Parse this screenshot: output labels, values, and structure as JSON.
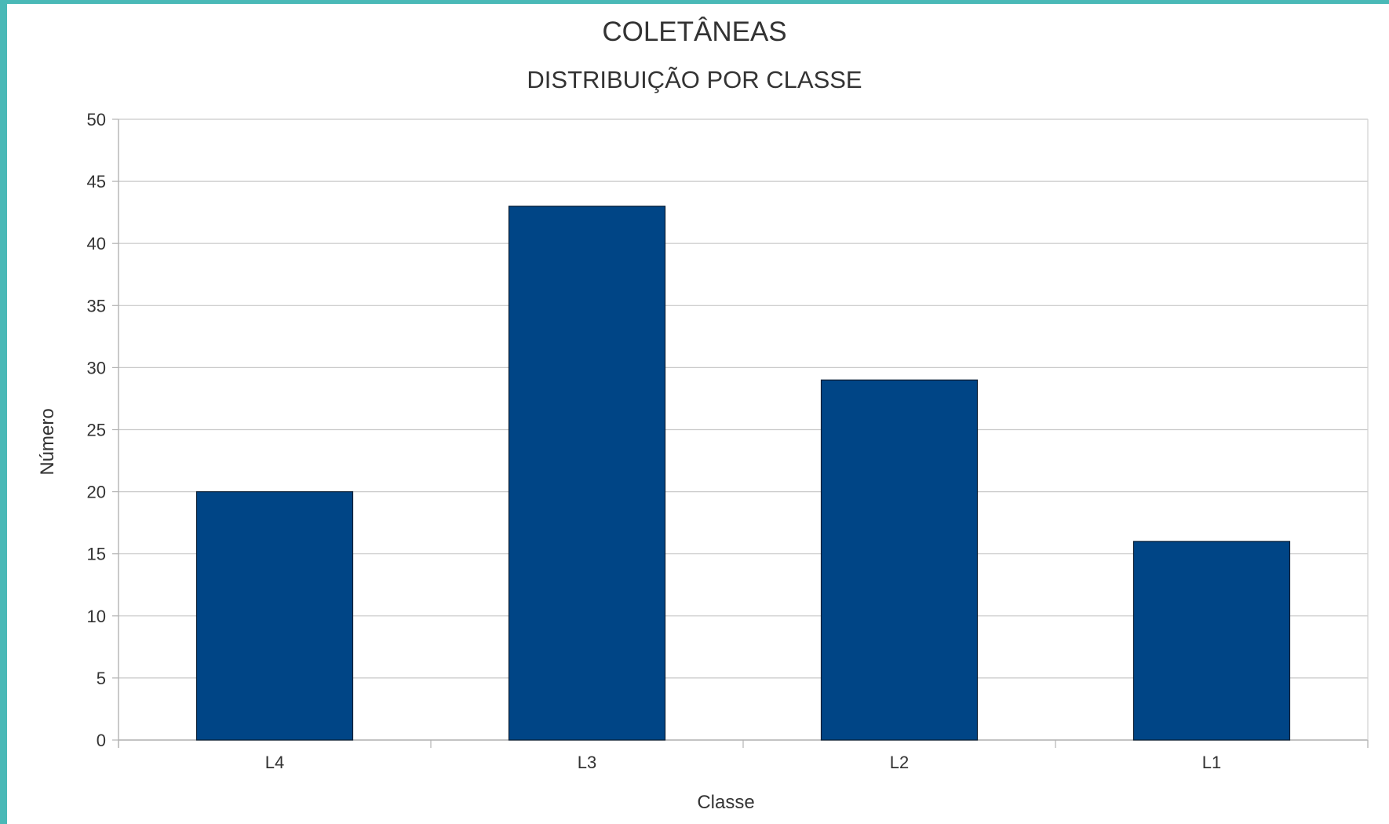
{
  "chart_data": {
    "type": "bar",
    "title": "COLETÂNEAS",
    "subtitle": "DISTRIBUIÇÃO POR CLASSE",
    "xlabel": "Classe",
    "ylabel": "Número",
    "categories": [
      "L4",
      "L3",
      "L2",
      "L1"
    ],
    "values": [
      20,
      43,
      29,
      16
    ],
    "ylim": [
      0,
      50
    ],
    "yticks": [
      0,
      5,
      10,
      15,
      20,
      25,
      30,
      35,
      40,
      45,
      50
    ],
    "grid": true,
    "legend": "none",
    "colors": {
      "bar": "#004586",
      "frame": "#4ab9b7",
      "grid": "#c9c9c9"
    }
  }
}
